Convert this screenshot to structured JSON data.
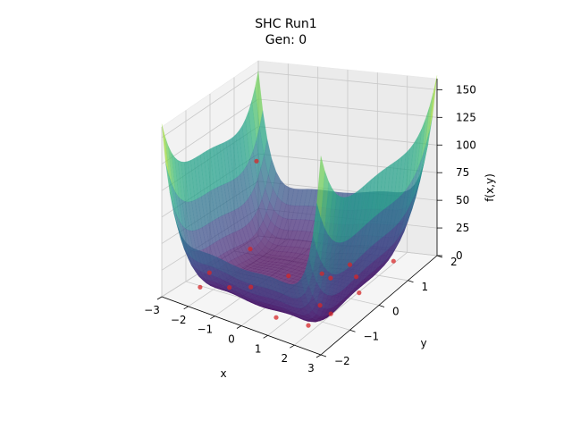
{
  "chart_data": {
    "type": "surface3d",
    "title": "SHC Run1",
    "subtitle": "Gen: 0",
    "xlabel": "x",
    "ylabel": "y",
    "zlabel": "f(x,y)",
    "xlim": [
      -3,
      3
    ],
    "ylim": [
      -2,
      2
    ],
    "zlim": [
      0,
      160
    ],
    "xticks": [
      {
        "v": -3,
        "label": "−3"
      },
      {
        "v": -2,
        "label": "−2"
      },
      {
        "v": -1,
        "label": "−1"
      },
      {
        "v": 0,
        "label": "0"
      },
      {
        "v": 1,
        "label": "1"
      },
      {
        "v": 2,
        "label": "2"
      },
      {
        "v": 3,
        "label": "3"
      }
    ],
    "yticks": [
      {
        "v": -2,
        "label": "−2"
      },
      {
        "v": -1,
        "label": "−1"
      },
      {
        "v": 0,
        "label": "0"
      },
      {
        "v": 1,
        "label": "1"
      },
      {
        "v": 2,
        "label": "2"
      }
    ],
    "zticks": [
      {
        "v": 0,
        "label": "0"
      },
      {
        "v": 25,
        "label": "25"
      },
      {
        "v": 50,
        "label": "50"
      },
      {
        "v": 75,
        "label": "75"
      },
      {
        "v": 100,
        "label": "100"
      },
      {
        "v": 125,
        "label": "125"
      },
      {
        "v": 150,
        "label": "150"
      }
    ],
    "colormap": "viridis",
    "surface_alpha": 0.72,
    "grid": true,
    "points_color": "#d62728",
    "points": [
      {
        "x": -2.4,
        "y": 1.2,
        "z": 82
      },
      {
        "x": -2.1,
        "y": 0.6,
        "z": 12
      },
      {
        "x": -2.5,
        "y": -0.6,
        "z": 6
      },
      {
        "x": -2.3,
        "y": -1.2,
        "z": 3
      },
      {
        "x": -1.5,
        "y": -0.9,
        "z": 4
      },
      {
        "x": -1.0,
        "y": -0.6,
        "z": 3
      },
      {
        "x": -0.4,
        "y": 0.2,
        "z": 3
      },
      {
        "x": 0.4,
        "y": 0.6,
        "z": 2
      },
      {
        "x": 0.8,
        "y": 0.5,
        "z": 2
      },
      {
        "x": 0.9,
        "y": 1.1,
        "z": 3
      },
      {
        "x": 1.6,
        "y": 0.6,
        "z": 5
      },
      {
        "x": 1.5,
        "y": -0.6,
        "z": 3
      },
      {
        "x": 0.7,
        "y": -1.4,
        "z": 2
      },
      {
        "x": 2.2,
        "y": -0.9,
        "z": 6
      },
      {
        "x": 2.6,
        "y": -0.3,
        "z": 14
      },
      {
        "x": 2.6,
        "y": 0.9,
        "z": 17
      },
      {
        "x": 2.1,
        "y": -1.6,
        "z": 9
      }
    ]
  }
}
